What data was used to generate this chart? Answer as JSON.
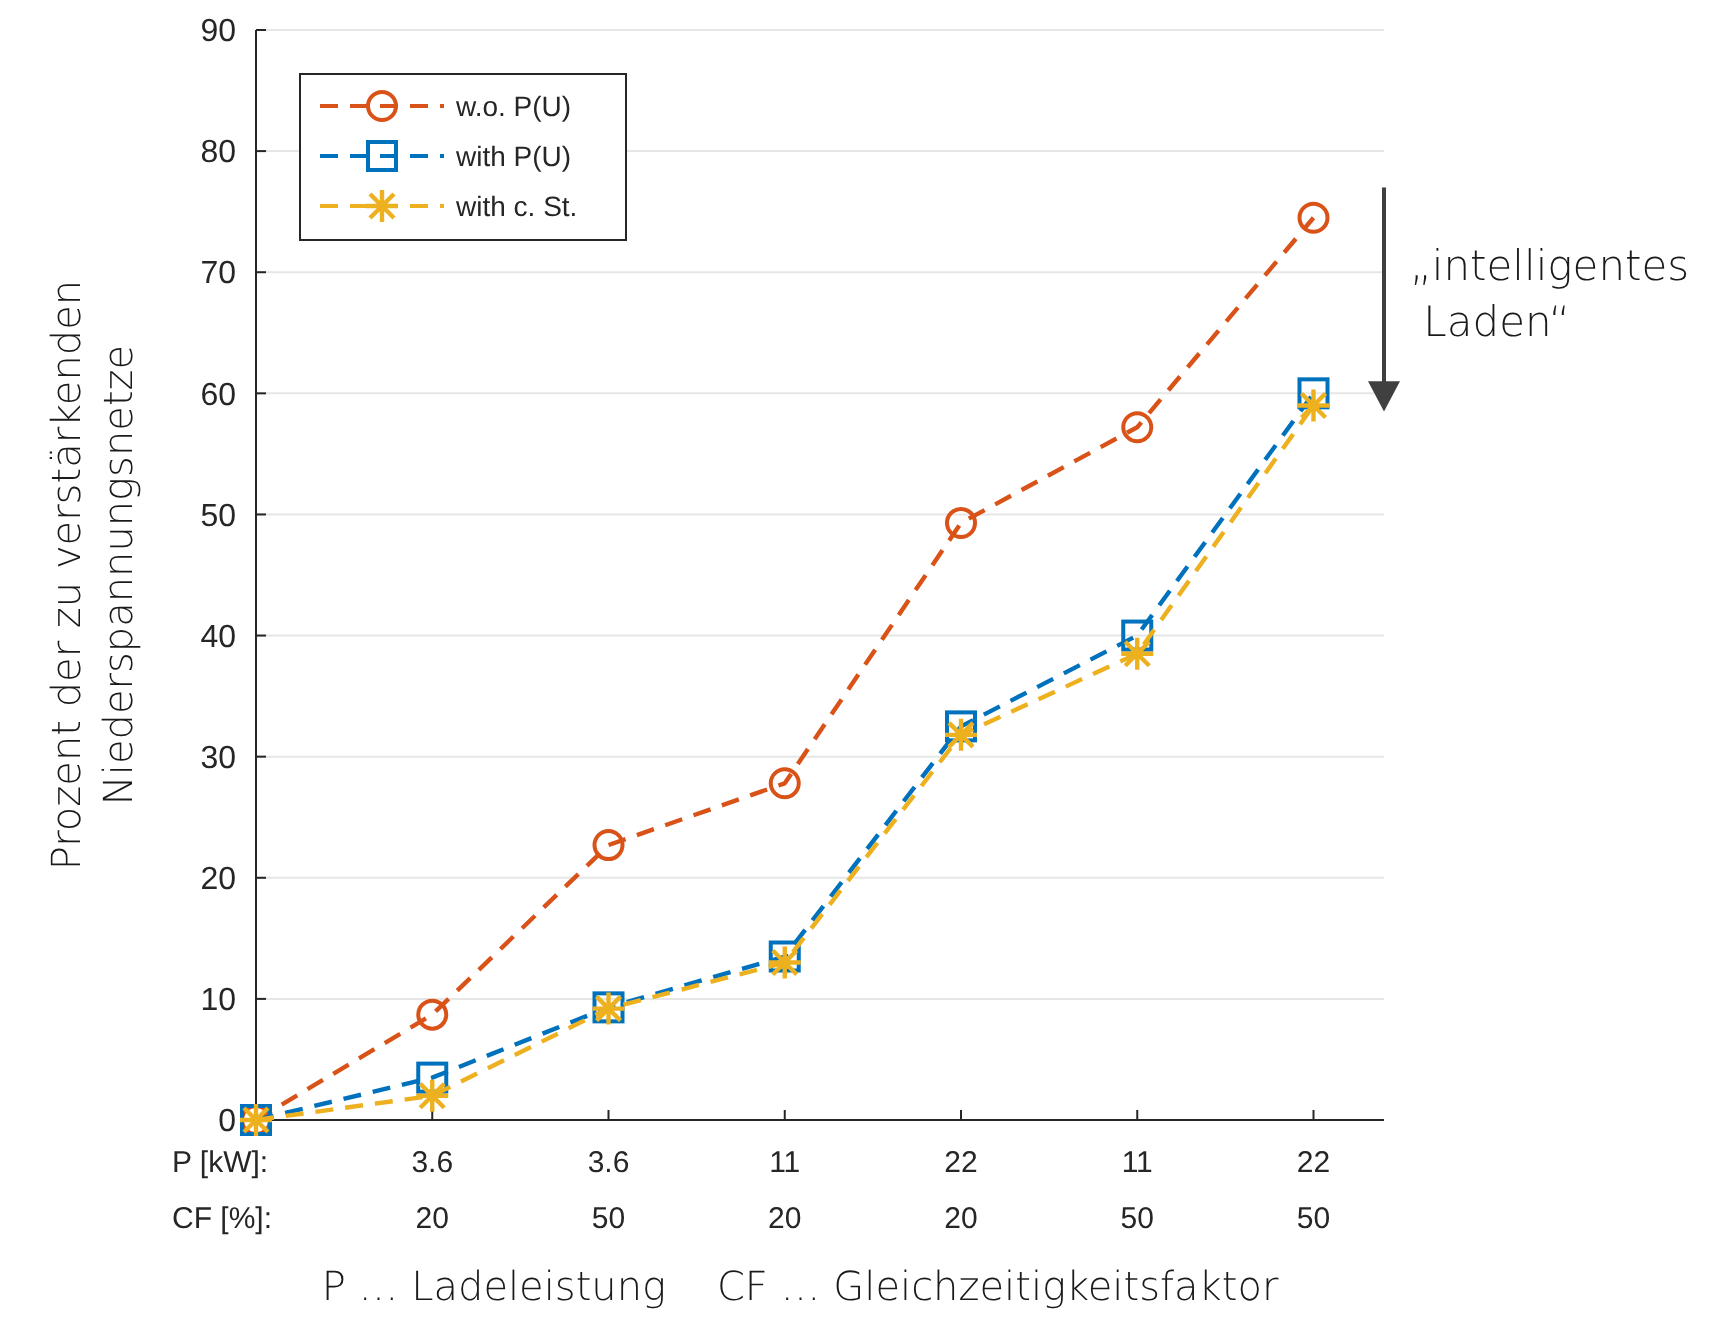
{
  "chart_data": {
    "type": "line",
    "ylabel": "Prozent der zu verstärkenden\nNiederspannungsnetze",
    "xlabel": "P … Ladeleistung    CF … Gleichzeitigkeitsfaktor",
    "annotations": [
      "P [kW]:",
      "CF [%]:",
      "„intelligentes\n Laden“"
    ],
    "categories": [
      null,
      "3.6\n20",
      "3.6\n50",
      "11\n20",
      "22\n20",
      "11\n50",
      "22\n50"
    ],
    "ylim": [
      0,
      90
    ],
    "yticks": [
      0,
      10,
      20,
      30,
      40,
      50,
      60,
      70,
      80,
      90
    ],
    "grid": "y",
    "legend": "top left",
    "series": [
      {
        "name": "w.o. P(U)",
        "color": "#d95319",
        "marker": "circle",
        "line_style": "dashed",
        "values": [
          0,
          8.7,
          22.7,
          27.8,
          49.3,
          57.2,
          74.5
        ]
      },
      {
        "name": "with P(U)",
        "color": "#0072bd",
        "marker": "square",
        "line_style": "dashed",
        "values": [
          0,
          3.5,
          9.3,
          13.5,
          32.5,
          40,
          60
        ]
      },
      {
        "name": "with c. St.",
        "color": "#edb120",
        "marker": "cross",
        "line_style": "dashed",
        "values": [
          0,
          2,
          9.2,
          13,
          31.8,
          38.5,
          59
        ]
      }
    ]
  }
}
